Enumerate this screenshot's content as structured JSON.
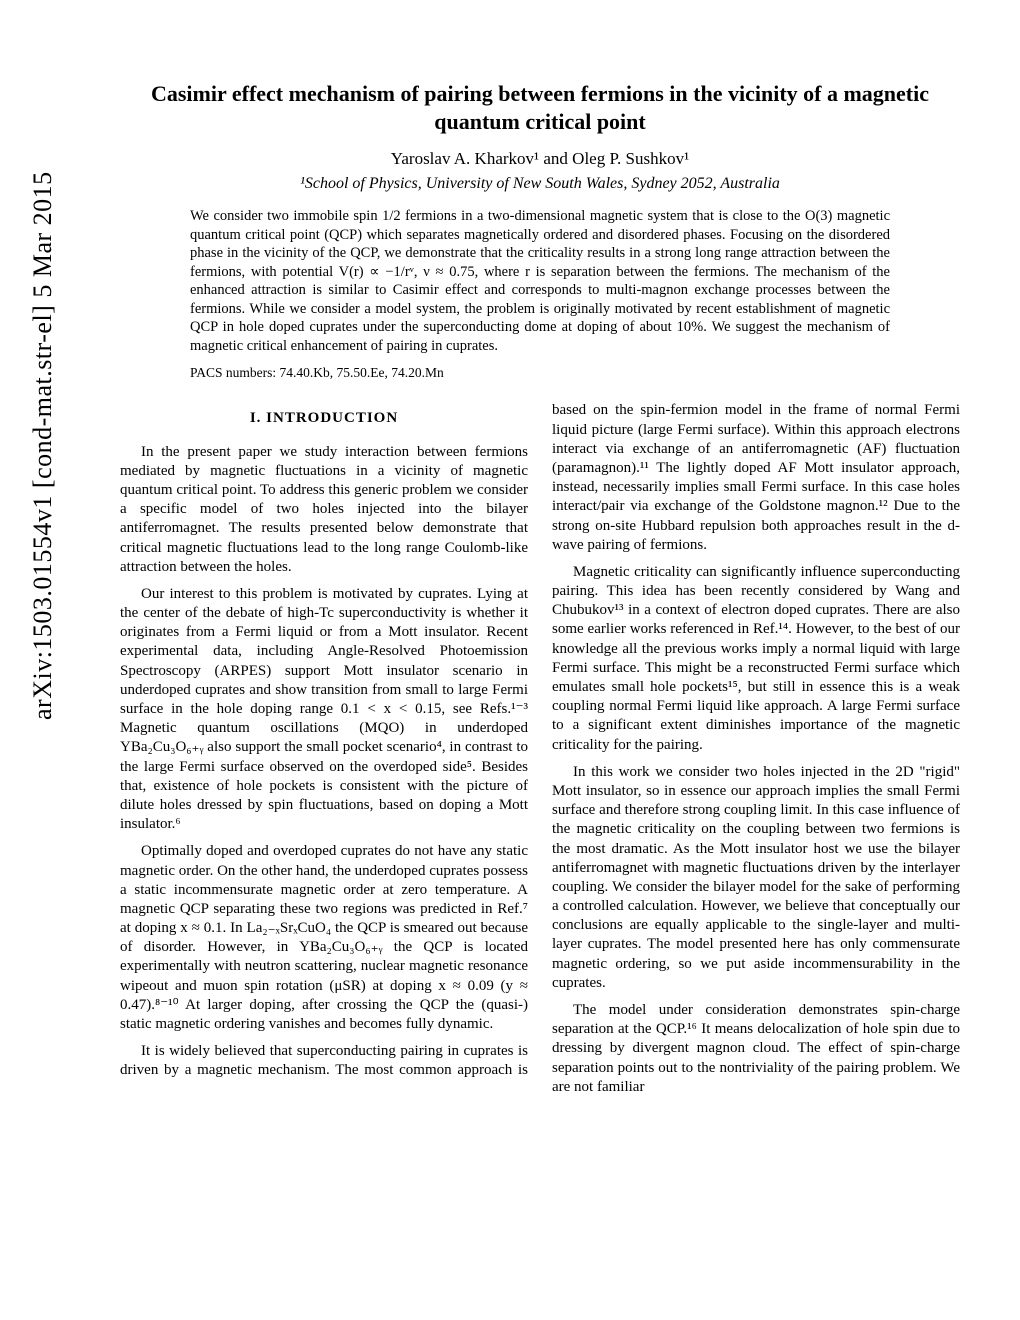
{
  "arxiv_tag": "arXiv:1503.01554v1  [cond-mat.str-el]  5 Mar 2015",
  "title": "Casimir effect mechanism of pairing between fermions in the vicinity of a magnetic quantum critical point",
  "authors": "Yaroslav A. Kharkov¹ and Oleg P. Sushkov¹",
  "affiliation": "¹School of Physics, University of New South Wales, Sydney 2052, Australia",
  "abstract": "We consider two immobile spin 1/2 fermions in a two-dimensional magnetic system that is close to the O(3) magnetic quantum critical point (QCP) which separates magnetically ordered and disordered phases. Focusing on the disordered phase in the vicinity of the QCP, we demonstrate that the criticality results in a strong long range attraction between the fermions, with potential V(r) ∝ −1/rᵛ, ν ≈ 0.75, where r is separation between the fermions. The mechanism of the enhanced attraction is similar to Casimir effect and corresponds to multi-magnon exchange processes between the fermions. While we consider a model system, the problem is originally motivated by recent establishment of magnetic QCP in hole doped cuprates under the superconducting dome at doping of about 10%. We suggest the mechanism of magnetic critical enhancement of pairing in cuprates.",
  "pacs": "PACS numbers: 74.40.Kb, 75.50.Ee, 74.20.Mn",
  "section1_head": "I.    INTRODUCTION",
  "p1": "In the present paper we study interaction between fermions mediated by magnetic fluctuations in a vicinity of magnetic quantum critical point. To address this generic problem we consider a specific model of two holes injected into the bilayer antiferromagnet. The results presented below demonstrate that critical magnetic fluctuations lead to the long range Coulomb-like attraction between the holes.",
  "p2": "Our interest to this problem is motivated by cuprates. Lying at the center of the debate of high-Tc superconductivity is whether it originates from a Fermi liquid or from a Mott insulator. Recent experimental data, including Angle-Resolved Photoemission Spectroscopy (ARPES) support Mott insulator scenario in underdoped cuprates and show transition from small to large Fermi surface in the hole doping range 0.1 < x < 0.15, see Refs.¹⁻³ Magnetic quantum oscillations (MQO) in underdoped YBa₂Cu₃O₆₊ᵧ also support the small pocket scenario⁴, in contrast to the large Fermi surface observed on the overdoped side⁵. Besides that, existence of hole pockets is consistent with the picture of dilute holes dressed by spin fluctuations, based on doping a Mott insulator.⁶",
  "p3": "Optimally doped and overdoped cuprates do not have any static magnetic order. On the other hand, the underdoped cuprates possess a static incommensurate magnetic order at zero temperature. A magnetic QCP separating these two regions was predicted in Ref.⁷ at doping x ≈ 0.1. In La₂₋ₓSrₓCuO₄ the QCP is smeared out because of disorder. However, in YBa₂Cu₃O₆₊ᵧ the QCP is located experimentally with neutron scattering, nuclear magnetic resonance wipeout and muon spin rotation (μSR) at doping x ≈ 0.09 (y ≈ 0.47).⁸⁻¹⁰ At larger doping, after crossing the QCP the (quasi-) static magnetic ordering vanishes and becomes fully dynamic.",
  "p4": "It is widely believed that superconducting pairing in cuprates is driven by a magnetic mechanism. The most common approach is based on the spin-fermion model in the frame of normal Fermi liquid picture (large Fermi surface). Within this approach electrons interact via exchange of an antiferromagnetic (AF) fluctuation (paramagnon).¹¹ The lightly doped AF Mott insulator approach, instead, necessarily implies small Fermi surface. In this case holes interact/pair via exchange of the Goldstone magnon.¹² Due to the strong on-site Hubbard repulsion both approaches result in the d-wave pairing of fermions.",
  "p5": "Magnetic criticality can significantly influence superconducting pairing. This idea has been recently considered by Wang and Chubukov¹³ in a context of electron doped cuprates. There are also some earlier works referenced in Ref.¹⁴. However, to the best of our knowledge all the previous works imply a normal liquid with large Fermi surface. This might be a reconstructed Fermi surface which emulates small hole pockets¹⁵, but still in essence this is a weak coupling normal Fermi liquid like approach. A large Fermi surface to a significant extent diminishes importance of the magnetic criticality for the pairing.",
  "p6": "In this work we consider two holes injected in the 2D \"rigid\" Mott insulator, so in essence our approach implies the small Fermi surface and therefore strong coupling limit. In this case influence of the magnetic criticality on the coupling between two fermions is the most dramatic. As the Mott insulator host we use the bilayer antiferromagnet with magnetic fluctuations driven by the interlayer coupling. We consider the bilayer model for the sake of performing a controlled calculation. However, we believe that conceptually our conclusions are equally applicable to the single-layer and multi-layer cuprates. The model presented here has only commensurate magnetic ordering, so we put aside incommensurability in the cuprates.",
  "p7": "The model under consideration demonstrates spin-charge separation at the QCP.¹⁶ It means delocalization of hole spin due to dressing by divergent magnon cloud. The effect of spin-charge separation points out to the nontriviality of the pairing problem. We are not familiar"
}
